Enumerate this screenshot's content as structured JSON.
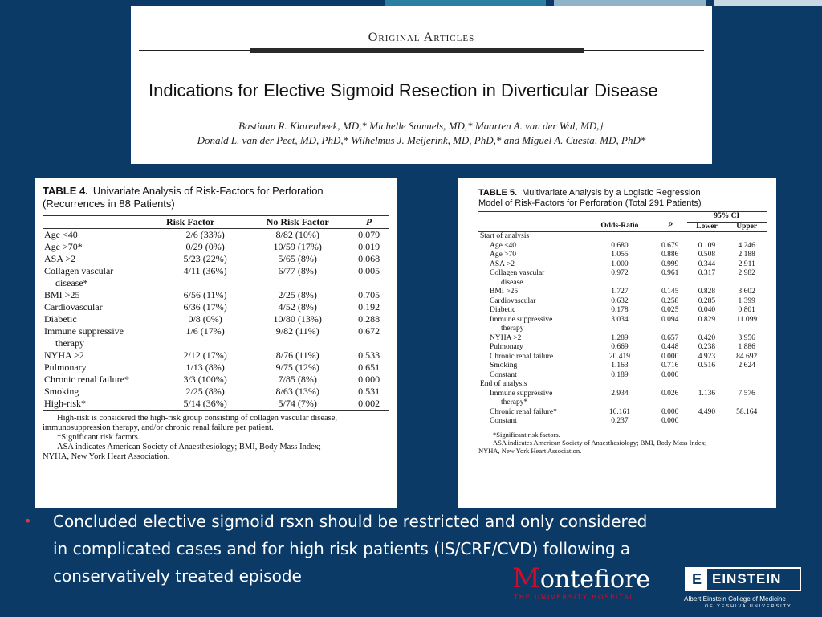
{
  "colors": {
    "background": "#0b3a66",
    "bullet": "#e23a3a",
    "montefiore_red": "#c8102e",
    "top_bars": [
      "#2a7fa3",
      "#8fb3c9",
      "#c9d9e3"
    ]
  },
  "header": {
    "section": "Original Articles",
    "title": "Indications for Elective Sigmoid Resection in Diverticular Disease",
    "authors_line1": "Bastiaan R. Klarenbeek, MD,* Michelle Samuels, MD,* Maarten A. van der Wal, MD,†",
    "authors_line2": "Donald L. van der Peet, MD, PhD,* Wilhelmus J. Meijerink, MD, PhD,* and Miguel A. Cuesta, MD, PhD*"
  },
  "table4": {
    "label": "TABLE 4.",
    "caption": "Univariate Analysis of Risk-Factors for Perforation (Recurrences in 88 Patients)",
    "columns": [
      "",
      "Risk Factor",
      "No Risk Factor",
      "P"
    ],
    "rows": [
      {
        "label": "Age <40",
        "cont": "",
        "rf": "2/6 (33%)",
        "nrf": "8/82 (10%)",
        "p": "0.079"
      },
      {
        "label": "Age >70*",
        "cont": "",
        "rf": "0/29 (0%)",
        "nrf": "10/59 (17%)",
        "p": "0.019"
      },
      {
        "label": "ASA >2",
        "cont": "",
        "rf": "5/23 (22%)",
        "nrf": "5/65 (8%)",
        "p": "0.068"
      },
      {
        "label": "Collagen vascular",
        "cont": "disease*",
        "rf": "4/11 (36%)",
        "nrf": "6/77 (8%)",
        "p": "0.005"
      },
      {
        "label": "BMI >25",
        "cont": "",
        "rf": "6/56 (11%)",
        "nrf": "2/25 (8%)",
        "p": "0.705"
      },
      {
        "label": "Cardiovascular",
        "cont": "",
        "rf": "6/36 (17%)",
        "nrf": "4/52 (8%)",
        "p": "0.192"
      },
      {
        "label": "Diabetic",
        "cont": "",
        "rf": "0/8 (0%)",
        "nrf": "10/80 (13%)",
        "p": "0.288"
      },
      {
        "label": "Immune suppressive",
        "cont": "therapy",
        "rf": "1/6 (17%)",
        "nrf": "9/82 (11%)",
        "p": "0.672"
      },
      {
        "label": "NYHA >2",
        "cont": "",
        "rf": "2/12 (17%)",
        "nrf": "8/76 (11%)",
        "p": "0.533"
      },
      {
        "label": "Pulmonary",
        "cont": "",
        "rf": "1/13 (8%)",
        "nrf": "9/75 (12%)",
        "p": "0.651"
      },
      {
        "label": "Chronic renal failure*",
        "cont": "",
        "rf": "3/3 (100%)",
        "nrf": "7/85 (8%)",
        "p": "0.000"
      },
      {
        "label": "Smoking",
        "cont": "",
        "rf": "2/25 (8%)",
        "nrf": "8/63 (13%)",
        "p": "0.531"
      },
      {
        "label": "High-risk*",
        "cont": "",
        "rf": "5/14 (36%)",
        "nrf": "5/74 (7%)",
        "p": "0.002"
      }
    ],
    "footnotes": [
      "High-risk is considered the high-risk group consisting of collagen vascular disease,",
      "immunosuppression therapy, and/or chronic renal failure per patient.",
      "*Significant risk factors.",
      "ASA indicates American Society of Anaesthesiology; BMI, Body Mass Index;",
      "NYHA, New York Heart Association."
    ]
  },
  "table5": {
    "label": "TABLE 5.",
    "caption_line1": "Multivariate Analysis by a Logistic Regression",
    "caption_line2": "Model of Risk-Factors for Perforation (Total 291 Patients)",
    "ci_header": "95% CI",
    "columns": [
      "",
      "Odds-Ratio",
      "P",
      "Lower",
      "Upper"
    ],
    "rows": [
      {
        "label": "Start of analysis",
        "cont": "",
        "section": true,
        "or": "",
        "p": "",
        "lower": "",
        "upper": ""
      },
      {
        "label": "Age <40",
        "cont": "",
        "section": false,
        "or": "0.680",
        "p": "0.679",
        "lower": "0.109",
        "upper": "4.246"
      },
      {
        "label": "Age >70",
        "cont": "",
        "section": false,
        "or": "1.055",
        "p": "0.886",
        "lower": "0.508",
        "upper": "2.188"
      },
      {
        "label": "ASA >2",
        "cont": "",
        "section": false,
        "or": "1.000",
        "p": "0.999",
        "lower": "0.344",
        "upper": "2.911"
      },
      {
        "label": "Collagen vascular",
        "cont": "disease",
        "section": false,
        "or": "0.972",
        "p": "0.961",
        "lower": "0.317",
        "upper": "2.982"
      },
      {
        "label": "BMI >25",
        "cont": "",
        "section": false,
        "or": "1.727",
        "p": "0.145",
        "lower": "0.828",
        "upper": "3.602"
      },
      {
        "label": "Cardiovascular",
        "cont": "",
        "section": false,
        "or": "0.632",
        "p": "0.258",
        "lower": "0.285",
        "upper": "1.399"
      },
      {
        "label": "Diabetic",
        "cont": "",
        "section": false,
        "or": "0.178",
        "p": "0.025",
        "lower": "0.040",
        "upper": "0.801"
      },
      {
        "label": "Immune suppressive",
        "cont": "therapy",
        "section": false,
        "or": "3.034",
        "p": "0.094",
        "lower": "0.829",
        "upper": "11.099"
      },
      {
        "label": "NYHA >2",
        "cont": "",
        "section": false,
        "or": "1.289",
        "p": "0.657",
        "lower": "0.420",
        "upper": "3.956"
      },
      {
        "label": "Pulmonary",
        "cont": "",
        "section": false,
        "or": "0.669",
        "p": "0.448",
        "lower": "0.238",
        "upper": "1.886"
      },
      {
        "label": "Chronic renal failure",
        "cont": "",
        "section": false,
        "or": "20.419",
        "p": "0.000",
        "lower": "4.923",
        "upper": "84.692"
      },
      {
        "label": "Smoking",
        "cont": "",
        "section": false,
        "or": "1.163",
        "p": "0.716",
        "lower": "0.516",
        "upper": "2.624"
      },
      {
        "label": "Constant",
        "cont": "",
        "section": false,
        "or": "0.189",
        "p": "0.000",
        "lower": "",
        "upper": ""
      },
      {
        "label": "End of analysis",
        "cont": "",
        "section": true,
        "or": "",
        "p": "",
        "lower": "",
        "upper": ""
      },
      {
        "label": "Immune suppressive",
        "cont": "therapy*",
        "section": false,
        "or": "2.934",
        "p": "0.026",
        "lower": "1.136",
        "upper": "7.576"
      },
      {
        "label": "Chronic renal failure*",
        "cont": "",
        "section": false,
        "or": "16.161",
        "p": "0.000",
        "lower": "4.490",
        "upper": "58.164"
      },
      {
        "label": "Constant",
        "cont": "",
        "section": false,
        "or": "0.237",
        "p": "0.000",
        "lower": "",
        "upper": ""
      }
    ],
    "footnotes": [
      "*Significant risk factors.",
      "ASA indicates American Society of Anaesthesiology; BMI, Body Mass Index;",
      "NYHA, New York Heart Association."
    ]
  },
  "bullet": {
    "symbol": "•",
    "lines": [
      "Concluded elective sigmoid rsxn should be restricted and only considered",
      "in complicated cases and for high risk patients (IS/CRF/CVD) following a",
      "conservatively treated episode"
    ]
  },
  "logos": {
    "montefiore_first": "M",
    "montefiore_rest": "ontefiore",
    "montefiore_sub": "THE UNIVERSITY HOSPITAL",
    "einstein_mark": "E",
    "einstein_word": "EINSTEIN",
    "einstein_sub": "Albert Einstein College of Medicine",
    "einstein_sub2": "OF YESHIVA UNIVERSITY"
  }
}
